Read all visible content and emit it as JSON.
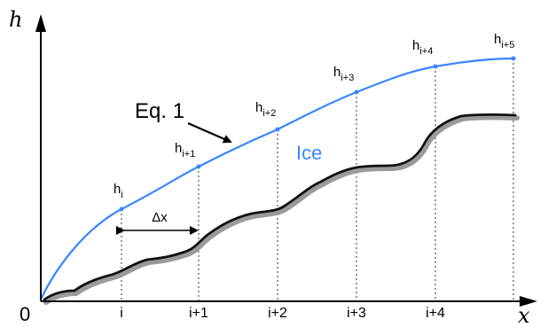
{
  "axes": {
    "y_label": "h",
    "x_label": "x",
    "origin_label": "0"
  },
  "x_ticks": [
    "i",
    "i+1",
    "i+2",
    "i+3",
    "i+4"
  ],
  "height_labels": [
    {
      "base": "h",
      "sub": "i"
    },
    {
      "base": "h",
      "sub": "i+1"
    },
    {
      "base": "h",
      "sub": "i+2"
    },
    {
      "base": "h",
      "sub": "i+3"
    },
    {
      "base": "h",
      "sub": "i+4"
    },
    {
      "base": "h",
      "sub": "i+5"
    }
  ],
  "annotations": {
    "equation": "Eq. 1",
    "ice": "Ice",
    "delta_x": "Δx"
  },
  "colors": {
    "ice_curve": "#3a86ff",
    "ice_text": "#3a86ff",
    "surface_curve": "#111111",
    "surface_shadow": "#9a9a9a",
    "axes": "#000000",
    "guides": "#555555"
  }
}
